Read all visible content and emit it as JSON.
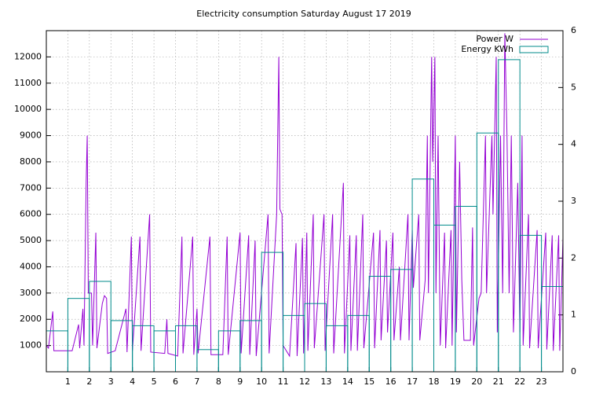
{
  "chart_data": {
    "type": "line",
    "title": "Electricity consumption Saturday August 17 2019",
    "xlim": [
      0,
      24
    ],
    "xticks": [
      1,
      2,
      3,
      4,
      5,
      6,
      7,
      8,
      9,
      10,
      11,
      12,
      13,
      14,
      15,
      16,
      17,
      18,
      19,
      20,
      21,
      22,
      23
    ],
    "ylim": [
      0,
      13000
    ],
    "yticks": [
      1000,
      2000,
      3000,
      4000,
      5000,
      6000,
      7000,
      8000,
      9000,
      10000,
      11000,
      12000
    ],
    "y2lim": [
      0,
      6
    ],
    "y2ticks": [
      0,
      1,
      2,
      3,
      4,
      5,
      6
    ],
    "grid": true,
    "legend": "top-right",
    "series": [
      {
        "name": "Power W",
        "type": "line",
        "color": "#9400d3",
        "x": [
          0,
          0.1,
          0.3,
          0.35,
          0.9,
          1.2,
          1.5,
          1.55,
          1.7,
          1.75,
          1.85,
          1.9,
          1.95,
          2.1,
          2.15,
          2.3,
          2.35,
          2.6,
          2.7,
          2.8,
          2.85,
          3.2,
          3.7,
          3.75,
          3.95,
          4.0,
          4.35,
          4.4,
          4.8,
          4.85,
          5.5,
          5.6,
          5.65,
          6.1,
          6.3,
          6.35,
          6.8,
          6.85,
          7.0,
          7.05,
          7.6,
          7.65,
          8.2,
          8.4,
          8.45,
          9.0,
          9.05,
          9.4,
          9.45,
          9.7,
          9.75,
          10.3,
          10.35,
          10.7,
          10.75,
          10.8,
          10.85,
          10.95,
          11.0,
          11.3,
          11.6,
          11.65,
          11.9,
          11.95,
          12.1,
          12.15,
          12.4,
          12.45,
          12.9,
          12.95,
          13.3,
          13.35,
          13.8,
          13.85,
          14.1,
          14.15,
          14.4,
          14.45,
          14.7,
          14.75,
          15.2,
          15.25,
          15.5,
          15.55,
          15.8,
          15.85,
          16.1,
          16.15,
          16.4,
          16.45,
          16.8,
          16.85,
          17.0,
          17.05,
          17.3,
          17.35,
          17.6,
          17.7,
          17.75,
          17.85,
          17.9,
          17.95,
          18.05,
          18.1,
          18.2,
          18.3,
          18.5,
          18.55,
          18.8,
          18.85,
          19.0,
          19.05,
          19.2,
          19.3,
          19.4,
          19.7,
          19.8,
          19.85,
          20.1,
          20.2,
          20.4,
          20.45,
          20.7,
          20.75,
          20.9,
          20.95,
          21.1,
          21.2,
          21.3,
          21.4,
          21.5,
          21.6,
          21.7,
          21.9,
          22.0,
          22.1,
          22.15,
          22.4,
          22.45,
          22.8,
          22.85,
          23.2,
          23.25,
          23.5,
          23.55,
          23.8,
          23.85,
          24
        ],
        "values": [
          1000,
          900,
          2300,
          800,
          800,
          800,
          1800,
          900,
          2400,
          1000,
          7200,
          9000,
          3000,
          3000,
          1000,
          5300,
          900,
          2600,
          2900,
          2800,
          700,
          800,
          2400,
          750,
          5150,
          800,
          5150,
          800,
          6000,
          750,
          700,
          2000,
          700,
          600,
          5150,
          700,
          5150,
          650,
          2400,
          700,
          5150,
          650,
          650,
          5150,
          650,
          5300,
          700,
          5200,
          650,
          5000,
          600,
          6000,
          700,
          6000,
          9000,
          12000,
          6200,
          6000,
          1000,
          600,
          4900,
          600,
          5100,
          700,
          5300,
          800,
          6000,
          900,
          6000,
          800,
          6000,
          700,
          7200,
          700,
          5200,
          800,
          5200,
          800,
          6000,
          900,
          5300,
          900,
          5400,
          1200,
          5000,
          1500,
          5300,
          1200,
          4000,
          1200,
          6000,
          1200,
          5400,
          3200,
          6000,
          1200,
          3500,
          9000,
          3000,
          9000,
          12000,
          8000,
          12000,
          3000,
          9000,
          1000,
          5300,
          900,
          5400,
          1000,
          9000,
          1500,
          8000,
          3500,
          1200,
          1200,
          5500,
          1000,
          2800,
          3000,
          9000,
          3000,
          9000,
          6000,
          12000,
          1500,
          9000,
          3000,
          12900,
          9000,
          3000,
          9000,
          1500,
          7200,
          1500,
          9000,
          1000,
          6000,
          900,
          5400,
          900,
          5300,
          850,
          5200,
          800,
          5200,
          800,
          5100
        ]
      },
      {
        "name": "Energy KWh",
        "type": "histogram",
        "axis": "y2",
        "color": "#008b8b",
        "bins": [
          0,
          1,
          2,
          3,
          4,
          5,
          6,
          7,
          8,
          9,
          10,
          11,
          12,
          13,
          14,
          15,
          16,
          17,
          18,
          19,
          20,
          21,
          22,
          23,
          24
        ],
        "values": [
          0.72,
          1.29,
          1.59,
          0.9,
          0.81,
          0.72,
          0.81,
          0.39,
          0.72,
          0.9,
          2.1,
          0.99,
          1.2,
          0.81,
          0.99,
          1.68,
          1.8,
          3.39,
          2.58,
          2.91,
          4.2,
          5.49,
          2.4,
          1.5
        ]
      }
    ]
  }
}
